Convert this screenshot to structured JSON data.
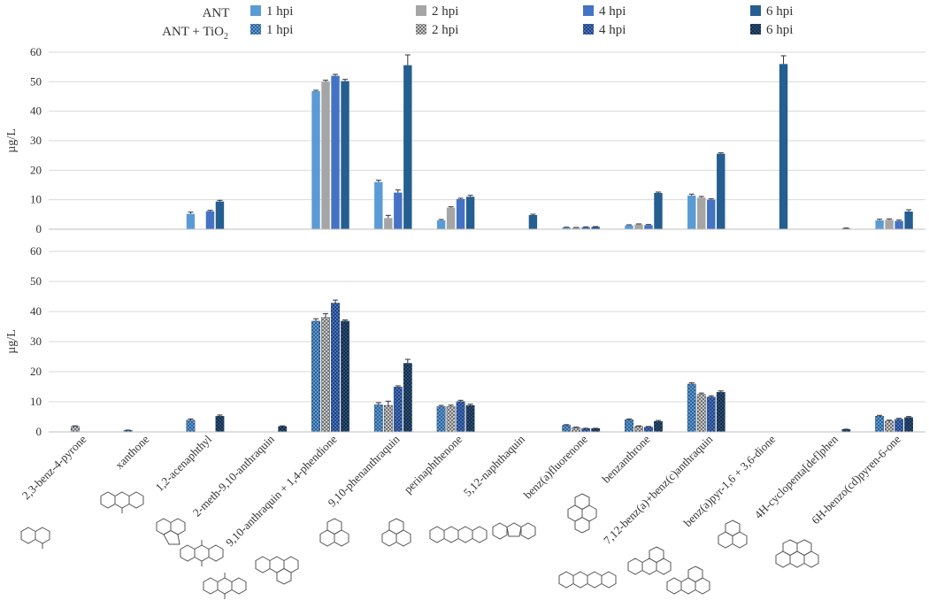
{
  "chart_data": {
    "type": "bar",
    "ylabel": "µg/L",
    "ylim": [
      0,
      60
    ],
    "yticks": [
      0,
      10,
      20,
      30,
      40,
      50,
      60
    ],
    "grid": true,
    "legend": {
      "group_labels": [
        "ANT",
        "ANT + TiO",
        "2"
      ],
      "entries": [
        "1 hpi",
        "2 hpi",
        "4 hpi",
        "6 hpi"
      ],
      "placement": "top"
    },
    "categories": [
      "2,3-benz-4-pyrone",
      "xanthone",
      "1,2-acenaphthyl",
      "2-meth-9,10-anthraquin",
      "9,10-anthraquin + 1,4-phendione",
      "9,10-phenanthraquin",
      "perinaphthenone",
      "5,12-naphthaquin",
      "benz(a)fluorenone",
      "benzanthrone",
      "7,12-benz(a)+benz(c)anthraquin",
      "benz(a)pyr-1,6 + 3,6-dione",
      "4H-cyclopenta[def]phen",
      "6H-benzo(cd)pyren-6-one"
    ],
    "panels": [
      {
        "name": "ANT",
        "series": [
          {
            "name": "1 hpi",
            "color": "#5b9bd5",
            "values": [
              0.1,
              0.1,
              5.2,
              0.1,
              46.8,
              16.0,
              3.0,
              0,
              0.6,
              1.3,
              11.4,
              0,
              0,
              3.0
            ],
            "errors": [
              0,
              0,
              0.6,
              0,
              0.3,
              0.6,
              0.3,
              0,
              0.1,
              0.2,
              0.5,
              0,
              0,
              0.4
            ]
          },
          {
            "name": "2 hpi",
            "color": "#a5a5a5",
            "values": [
              0.1,
              0.1,
              0.1,
              0.1,
              50.0,
              3.8,
              7.3,
              0,
              0.5,
              1.6,
              10.7,
              0,
              0,
              3.2
            ],
            "errors": [
              0,
              0,
              0,
              0,
              0.5,
              0.9,
              0.3,
              0,
              0.1,
              0.2,
              0.4,
              0,
              0,
              0.3
            ]
          },
          {
            "name": "4 hpi",
            "color": "#4472c4",
            "values": [
              0.1,
              0.1,
              6.1,
              0.1,
              52.0,
              12.4,
              10.2,
              0,
              0.7,
              1.4,
              10.0,
              0,
              0,
              2.8
            ],
            "errors": [
              0,
              0,
              0.3,
              0,
              0.5,
              0.9,
              0.3,
              0,
              0.1,
              0.2,
              0.3,
              0,
              0,
              0.3
            ]
          },
          {
            "name": "6 hpi",
            "color": "#255e91",
            "values": [
              0.1,
              0.1,
              9.4,
              0.1,
              50.2,
              55.6,
              11.0,
              4.8,
              0.8,
              12.3,
              25.6,
              56.0,
              0.3,
              6.0
            ],
            "errors": [
              0,
              0,
              0.4,
              0,
              0.6,
              3.5,
              0.5,
              0.3,
              0.1,
              0.3,
              0.3,
              2.8,
              0.1,
              0.6
            ]
          }
        ]
      },
      {
        "name": "ANT + TiO2",
        "series": [
          {
            "name": "1 hpi",
            "color": "#5b9bd5",
            "values": [
              0,
              0.5,
              3.9,
              0,
              36.8,
              9.0,
              8.4,
              0,
              2.2,
              4.0,
              15.9,
              0,
              0,
              5.2
            ],
            "errors": [
              0,
              0.1,
              0.4,
              0,
              0.8,
              0.7,
              0.4,
              0,
              0.2,
              0.3,
              0.4,
              0,
              0,
              0.3
            ]
          },
          {
            "name": "2 hpi",
            "color": "#a5a5a5",
            "values": [
              1.8,
              0,
              0,
              0,
              38.0,
              8.8,
              8.5,
              0,
              1.4,
              1.8,
              12.5,
              0,
              0,
              3.6
            ],
            "errors": [
              0.2,
              0,
              0,
              0,
              1.3,
              1.4,
              0.4,
              0,
              0.2,
              0.2,
              0.4,
              0,
              0,
              0.3
            ]
          },
          {
            "name": "4 hpi",
            "color": "#4472c4",
            "values": [
              0,
              0,
              0,
              0,
              42.8,
              14.9,
              10.1,
              0,
              1.1,
              1.6,
              11.6,
              0,
              0,
              4.2
            ],
            "errors": [
              0,
              0,
              0,
              0,
              1.0,
              0.4,
              0.4,
              0,
              0.1,
              0.2,
              0.4,
              0,
              0,
              0.3
            ]
          },
          {
            "name": "6 hpi",
            "color": "#255e91",
            "values": [
              0,
              0,
              5.2,
              1.8,
              36.8,
              22.8,
              8.8,
              0,
              1.1,
              3.5,
              13.2,
              0,
              0.8,
              4.8
            ],
            "errors": [
              0,
              0,
              0.4,
              0.2,
              0.4,
              1.3,
              0.4,
              0,
              0.1,
              0.3,
              0.4,
              0,
              0.1,
              0.3
            ]
          }
        ]
      }
    ]
  }
}
